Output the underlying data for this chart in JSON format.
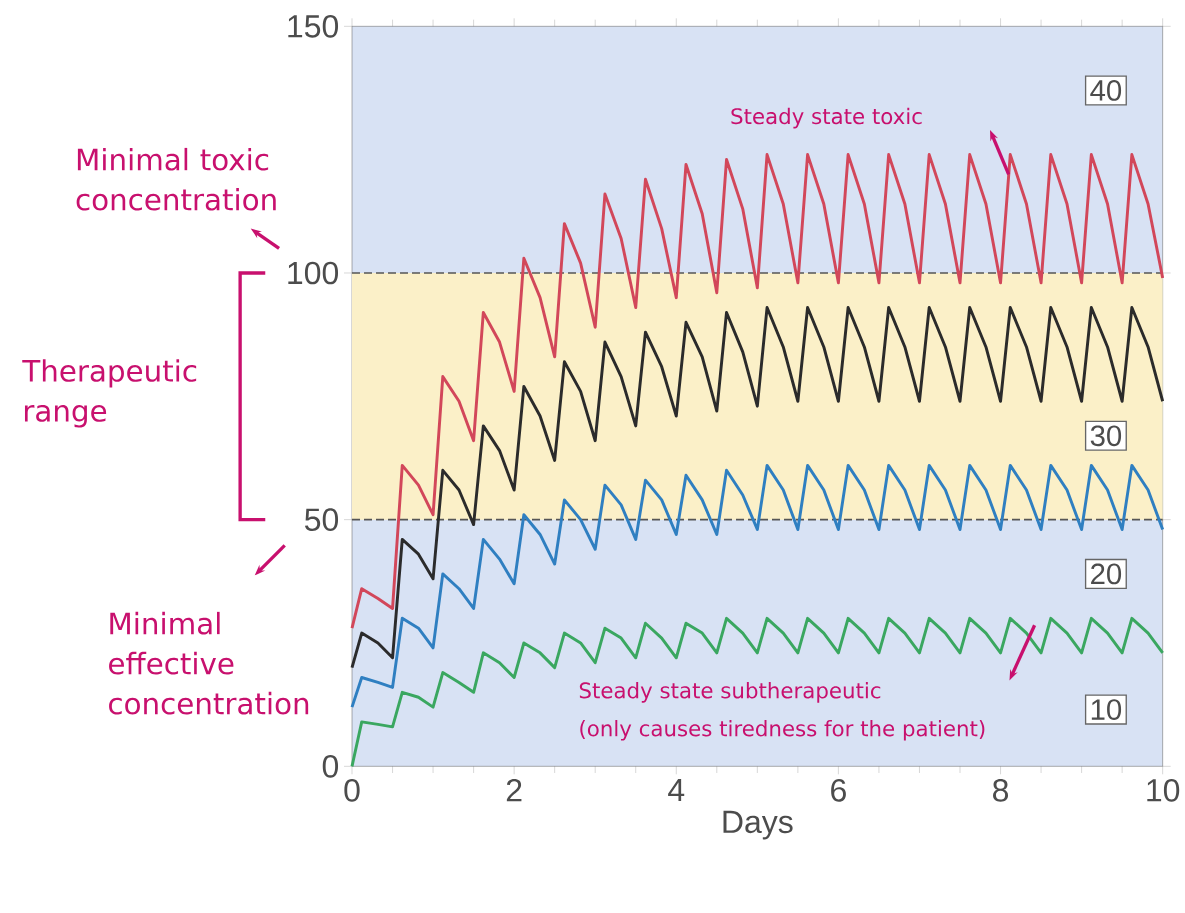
{
  "chart_data": {
    "type": "line",
    "xlabel": "Days",
    "xlim": [
      0,
      10
    ],
    "xticks": [
      0,
      2,
      4,
      6,
      8,
      10
    ],
    "ylim": [
      0,
      150
    ],
    "yticks": [
      0,
      50,
      100,
      150
    ],
    "x": [
      0,
      0.12,
      0.32,
      0.5,
      0.62,
      0.82,
      1,
      1.12,
      1.32,
      1.5,
      1.62,
      1.82,
      2,
      2.12,
      2.32,
      2.5,
      2.62,
      2.82,
      3,
      3.12,
      3.32,
      3.5,
      3.62,
      3.82,
      4,
      4.12,
      4.32,
      4.5,
      4.62,
      4.82,
      5,
      5.12,
      5.32,
      5.5,
      5.62,
      5.82,
      6,
      6.12,
      6.32,
      6.5,
      6.62,
      6.82,
      7,
      7.12,
      7.32,
      7.5,
      7.62,
      7.82,
      8,
      8.12,
      8.32,
      8.5,
      8.62,
      8.82,
      9,
      9.12,
      9.32,
      9.5,
      9.62,
      9.82,
      10
    ],
    "series": [
      {
        "name": "40",
        "color": "#d2475a",
        "values": [
          28,
          36,
          34,
          32,
          61,
          57,
          51,
          79,
          74,
          66,
          92,
          86,
          76,
          103,
          95,
          83,
          110,
          102,
          89,
          116,
          107,
          93,
          119,
          109,
          95,
          122,
          112,
          96,
          123,
          113,
          97,
          124,
          114,
          98,
          124,
          114,
          98,
          124,
          114,
          98,
          124,
          114,
          98,
          124,
          114,
          98,
          124,
          114,
          98,
          124,
          114,
          98,
          124,
          114,
          98,
          124,
          114,
          98,
          124,
          114,
          99
        ]
      },
      {
        "name": "30",
        "color": "#2b2b2b",
        "values": [
          20,
          27,
          25,
          22,
          46,
          43,
          38,
          60,
          56,
          49,
          69,
          64,
          56,
          77,
          71,
          62,
          82,
          76,
          66,
          86,
          79,
          69,
          88,
          81,
          71,
          90,
          83,
          72,
          92,
          84,
          73,
          93,
          85,
          74,
          93,
          85,
          74,
          93,
          85,
          74,
          93,
          85,
          74,
          93,
          85,
          74,
          93,
          85,
          74,
          93,
          85,
          74,
          93,
          85,
          74,
          93,
          85,
          74,
          93,
          85,
          74
        ]
      },
      {
        "name": "20",
        "color": "#2f7fc1",
        "values": [
          12,
          18,
          17,
          16,
          30,
          28,
          24,
          39,
          36,
          32,
          46,
          42,
          37,
          51,
          47,
          41,
          54,
          50,
          44,
          57,
          53,
          46,
          58,
          54,
          47,
          59,
          54,
          47,
          60,
          55,
          48,
          61,
          56,
          48,
          61,
          56,
          48,
          61,
          56,
          48,
          61,
          56,
          48,
          61,
          56,
          48,
          61,
          56,
          48,
          61,
          56,
          48,
          61,
          56,
          48,
          61,
          56,
          48,
          61,
          56,
          48
        ]
      },
      {
        "name": "10",
        "color": "#3aa760",
        "values": [
          0,
          9,
          8.5,
          8,
          15,
          14,
          12,
          19,
          17,
          15,
          23,
          21,
          18,
          25,
          23,
          20,
          27,
          25,
          21,
          28,
          26,
          22,
          29,
          26,
          22,
          29,
          27,
          23,
          30,
          27,
          23,
          30,
          27,
          23,
          30,
          27,
          23,
          30,
          27,
          23,
          30,
          27,
          23,
          30,
          27,
          23,
          30,
          27,
          23,
          30,
          27,
          23,
          30,
          27,
          23,
          30,
          27,
          23,
          30,
          27,
          23
        ]
      }
    ],
    "ref_lines": [
      {
        "axis": "y",
        "value": 100,
        "line_style": "dashed",
        "color": "#555555"
      },
      {
        "axis": "y",
        "value": 50,
        "line_style": "dashed",
        "color": "#555555"
      }
    ],
    "bands": [
      {
        "axis": "y",
        "from": 50,
        "to": 100,
        "color": "#fbf0c8"
      }
    ],
    "annotations": [
      "Minimal toxic concentration",
      "Therapeutic range",
      "Minimal effective concentration",
      "Steady state toxic",
      "Steady state subtherapeutic",
      "(only causes tiredness for the patient)"
    ]
  }
}
